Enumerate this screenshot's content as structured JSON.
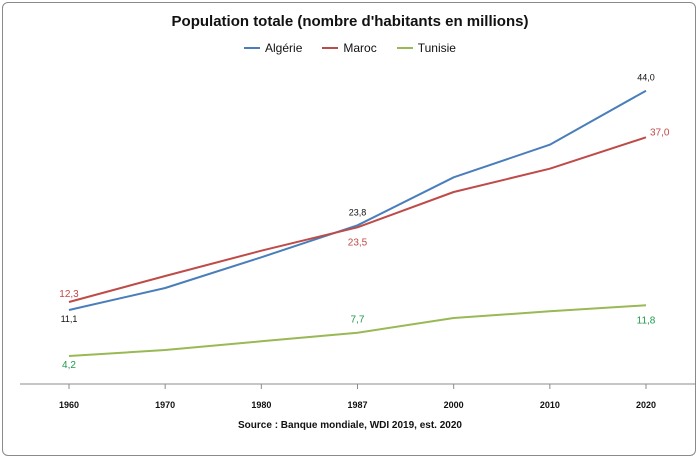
{
  "chart_data": {
    "type": "line",
    "title": "Population totale (nombre d'habitants en millions)",
    "source": "Source : Banque mondiale,  WDI 2019, est. 2020",
    "categories": [
      "1960",
      "1970",
      "1980",
      "1987",
      "2000",
      "2010",
      "2020"
    ],
    "ylim": [
      0,
      48
    ],
    "grid": false,
    "legend_placement": "top-center",
    "series": [
      {
        "name": "Algérie",
        "color": "#4A7EBB",
        "values": [
          11.1,
          14.4,
          19.0,
          23.8,
          31.0,
          35.9,
          44.0
        ],
        "labels": [
          {
            "index": 0,
            "text": "11,1",
            "color": "#111111",
            "pos": "below"
          },
          {
            "index": 3,
            "text": "23,8",
            "color": "#111111",
            "pos": "above"
          },
          {
            "index": 6,
            "text": "44,0",
            "color": "#111111",
            "pos": "above"
          }
        ]
      },
      {
        "name": "Maroc",
        "color": "#BE4B48",
        "values": [
          12.3,
          16.2,
          20.0,
          23.5,
          28.8,
          32.3,
          37.0
        ],
        "labels": [
          {
            "index": 0,
            "text": "12,3",
            "color": "#BE4B48",
            "pos": "above"
          },
          {
            "index": 3,
            "text": "23,5",
            "color": "#BE4B48",
            "pos": "below"
          },
          {
            "index": 6,
            "text": "37,0",
            "color": "#BE4B48",
            "pos": "right"
          }
        ]
      },
      {
        "name": "Tunisie",
        "color": "#98B954",
        "values": [
          4.2,
          5.1,
          6.4,
          7.7,
          9.9,
          10.9,
          11.8
        ],
        "labels": [
          {
            "index": 0,
            "text": "4,2",
            "color": "#1E9A4E",
            "pos": "below"
          },
          {
            "index": 3,
            "text": "7,7",
            "color": "#1E9A4E",
            "pos": "above"
          },
          {
            "index": 6,
            "text": "11,8",
            "color": "#1E9A4E",
            "pos": "below"
          }
        ]
      }
    ]
  }
}
